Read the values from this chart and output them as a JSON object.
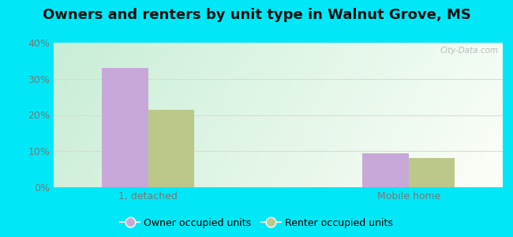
{
  "title": "Owners and renters by unit type in Walnut Grove, MS",
  "categories": [
    "1, detached",
    "Mobile home"
  ],
  "owner_values": [
    33.0,
    9.5
  ],
  "renter_values": [
    21.5,
    8.0
  ],
  "owner_color": "#c8a8d8",
  "renter_color": "#bcc88a",
  "ylim": [
    0,
    40
  ],
  "yticks": [
    0,
    10,
    20,
    30,
    40
  ],
  "yticklabels": [
    "0%",
    "10%",
    "20%",
    "30%",
    "40%"
  ],
  "bar_width": 0.32,
  "bg_topleft": "#c8ecd8",
  "bg_topright": "#e8f8ee",
  "bg_bottom": "#f0fff4",
  "outer_bg": "#00e8f8",
  "legend_labels": [
    "Owner occupied units",
    "Renter occupied units"
  ],
  "watermark": "City-Data.com",
  "title_fontsize": 13,
  "tick_fontsize": 9,
  "legend_fontsize": 9,
  "group_centers": [
    0.85,
    2.65
  ],
  "xlim": [
    0.2,
    3.3
  ]
}
